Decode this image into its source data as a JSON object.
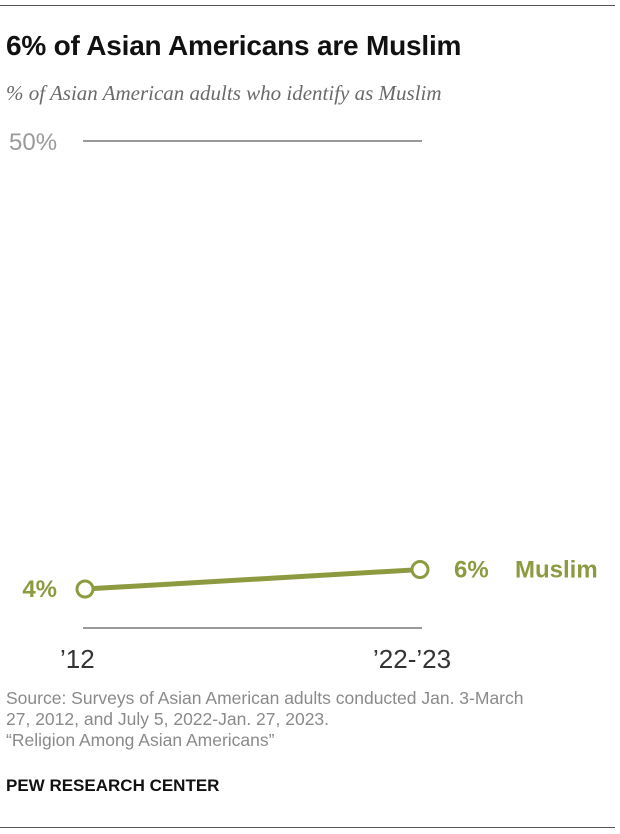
{
  "title": "6% of Asian Americans are Muslim",
  "subtitle": "% of Asian American adults who identify as Muslim",
  "colors": {
    "series": "#8e9a40",
    "axis": "#333333",
    "tick_text": "#9a9a9a"
  },
  "chart_data": {
    "type": "line",
    "x": [
      "’12",
      "’22-’23"
    ],
    "series": [
      {
        "name": "Muslim",
        "values": [
          4,
          6
        ],
        "labels": [
          "4%",
          "6%"
        ]
      }
    ],
    "ylim": [
      0,
      50
    ],
    "ytick_labels": [
      "50%"
    ],
    "xlabel": "",
    "ylabel": ""
  },
  "footer": {
    "source_line1": "Source: Surveys of Asian American adults conducted Jan. 3-March",
    "source_line2": "27, 2012, and July 5, 2022-Jan. 27, 2023.",
    "report": "“Religion Among Asian Americans”",
    "brand": "PEW RESEARCH CENTER"
  }
}
